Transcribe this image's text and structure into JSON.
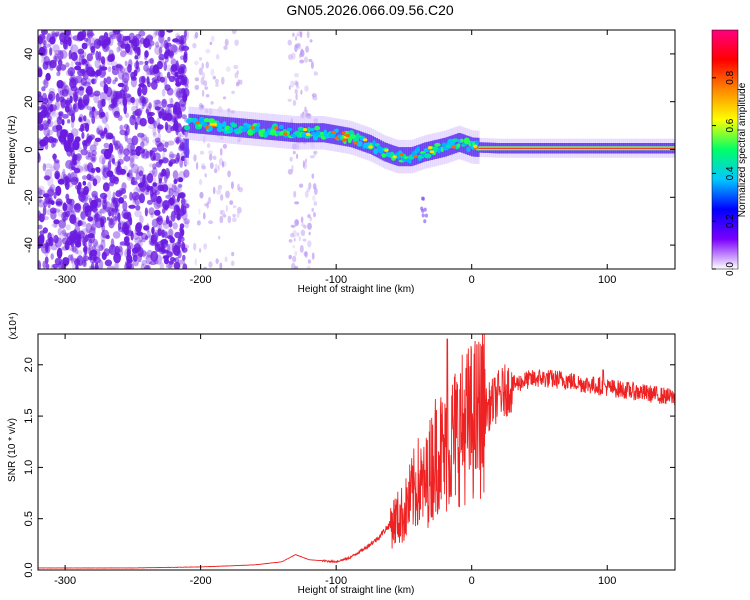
{
  "title": "GN05.2026.066.09.56.C20",
  "colors": {
    "snr_line": "#ee2222",
    "spectrogram_noise": "#6a1be0",
    "frame": "#000000"
  },
  "chart_data": [
    {
      "type": "heatmap",
      "xlabel": "Height of straight line (km)",
      "ylabel": "Frequency (Hz)",
      "xlim": [
        -320,
        150
      ],
      "ylim": [
        -50,
        50
      ],
      "xticks": [
        -300,
        -200,
        -100,
        0,
        100
      ],
      "xtick_labels": [
        "-300",
        "-200",
        "-100",
        "0",
        "100"
      ],
      "yticks": [
        -40,
        -20,
        0,
        20,
        40
      ],
      "ytick_labels": [
        "-40",
        "-20",
        "0",
        "20",
        "40"
      ],
      "colorbar": {
        "label": "Normalized spectral amplitude",
        "range": [
          0,
          1
        ],
        "ticks": [
          0.0,
          0.2,
          0.4,
          0.6,
          0.8
        ],
        "tick_labels": [
          "0.0",
          "0.2",
          "0.4",
          "0.6",
          "0.8"
        ],
        "colormap": [
          "#ffffff",
          "#7a00ff",
          "#0000ff",
          "#00c8ff",
          "#00ff66",
          "#ffff00",
          "#ff8800",
          "#ff0000",
          "#ff0080"
        ]
      },
      "ridge": {
        "x": [
          -210,
          -190,
          -170,
          -150,
          -130,
          -110,
          -90,
          -75,
          -65,
          -55,
          -45,
          -35,
          -20,
          -10,
          0,
          20,
          50,
          80,
          110,
          150
        ],
        "y": [
          11,
          10,
          9,
          8,
          7,
          7,
          5,
          2,
          -1,
          -3,
          -3,
          -1,
          1,
          3,
          1,
          0.5,
          0.5,
          0.5,
          0.5,
          0.5
        ]
      },
      "noise_region_x": [
        -320,
        -210
      ],
      "sparse_noise_bands_x": [
        [
          -205,
          -170
        ],
        [
          -135,
          -115
        ]
      ],
      "grid": false
    },
    {
      "type": "line",
      "xlabel": "Height of straight line (km)",
      "ylabel": "SNR (10 * v/v)",
      "scale_label": "(x10⁴)",
      "xlim": [
        -320,
        150
      ],
      "ylim": [
        0,
        2.3
      ],
      "xticks": [
        -300,
        -200,
        -100,
        0,
        100
      ],
      "xtick_labels": [
        "-300",
        "-200",
        "-100",
        "0",
        "100"
      ],
      "yticks": [
        0.0,
        0.5,
        1.0,
        1.5,
        2.0
      ],
      "ytick_labels": [
        "0.0",
        "0.5",
        "1.0",
        "1.5",
        "2.0"
      ],
      "series": [
        {
          "envelope_x": [
            -320,
            -250,
            -200,
            -160,
            -140,
            -130,
            -120,
            -100,
            -90,
            -80,
            -70,
            -60,
            -50,
            -40,
            -35,
            -30,
            -25,
            -20,
            -15,
            -10,
            0,
            10,
            20,
            30,
            40,
            50,
            60,
            70,
            80,
            90,
            100,
            110,
            120,
            130,
            140,
            150
          ],
          "envelope_y": [
            0.02,
            0.02,
            0.03,
            0.05,
            0.08,
            0.15,
            0.1,
            0.08,
            0.12,
            0.2,
            0.3,
            0.45,
            0.55,
            0.85,
            0.8,
            1.0,
            1.2,
            1.1,
            1.25,
            1.35,
            1.45,
            1.55,
            1.7,
            1.8,
            1.85,
            1.87,
            1.86,
            1.85,
            1.82,
            1.8,
            1.78,
            1.76,
            1.74,
            1.72,
            1.7,
            1.68
          ],
          "spike_x": -18,
          "spike_y": 2.25
        }
      ],
      "grid": false
    }
  ]
}
